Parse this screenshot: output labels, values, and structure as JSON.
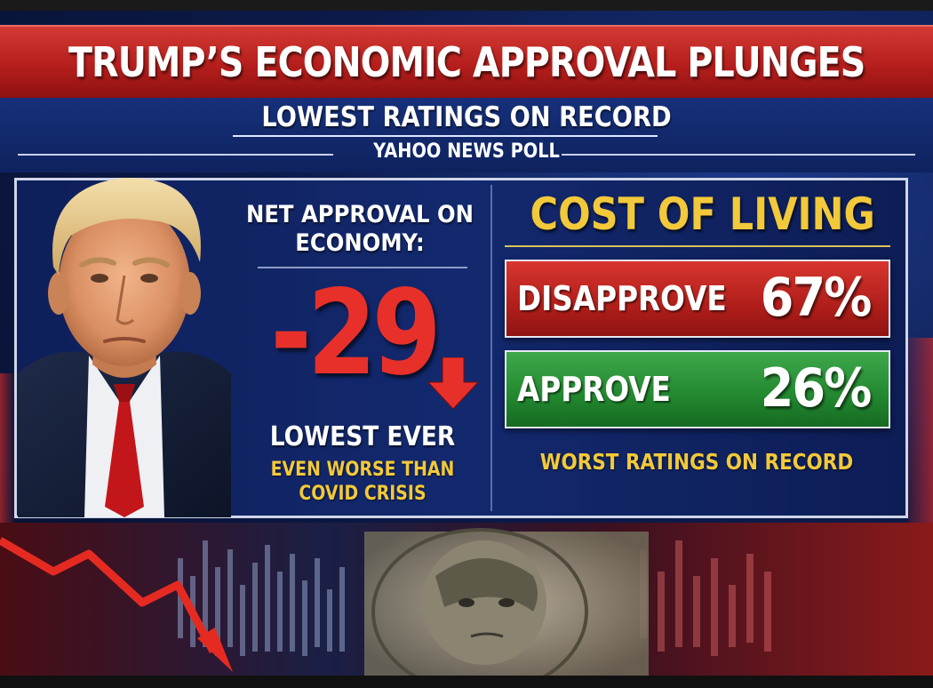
{
  "header": {
    "headline": "TRUMP’S ECONOMIC APPROVAL PLUNGES",
    "subtitle": "LOWEST RATINGS ON RECORD",
    "source": "YAHOO NEWS POLL"
  },
  "left_panel": {
    "label": "NET APPROVAL ON ECONOMY:",
    "net_value": "-29",
    "lowest_ever": "LOWEST EVER",
    "note": "EVEN WORSE THAN COVID CRISIS"
  },
  "right_panel": {
    "title": "COST OF LIVING",
    "disapprove": {
      "label": "DISAPPROVE",
      "value": "67%"
    },
    "approve": {
      "label": "APPROVE",
      "value": "26%"
    },
    "footer": "WORST RATINGS ON RECORD"
  },
  "colors": {
    "headline_red": "#b51e1c",
    "accent_gold": "#f2c93a",
    "number_red": "#e8302a",
    "approve_green": "#22872f",
    "panel_blue": "#13296e"
  },
  "icons": {
    "arrow": "down-arrow-icon",
    "trend": "falling-trend-arrow-icon",
    "bill": "hundred-dollar-bill-image"
  }
}
